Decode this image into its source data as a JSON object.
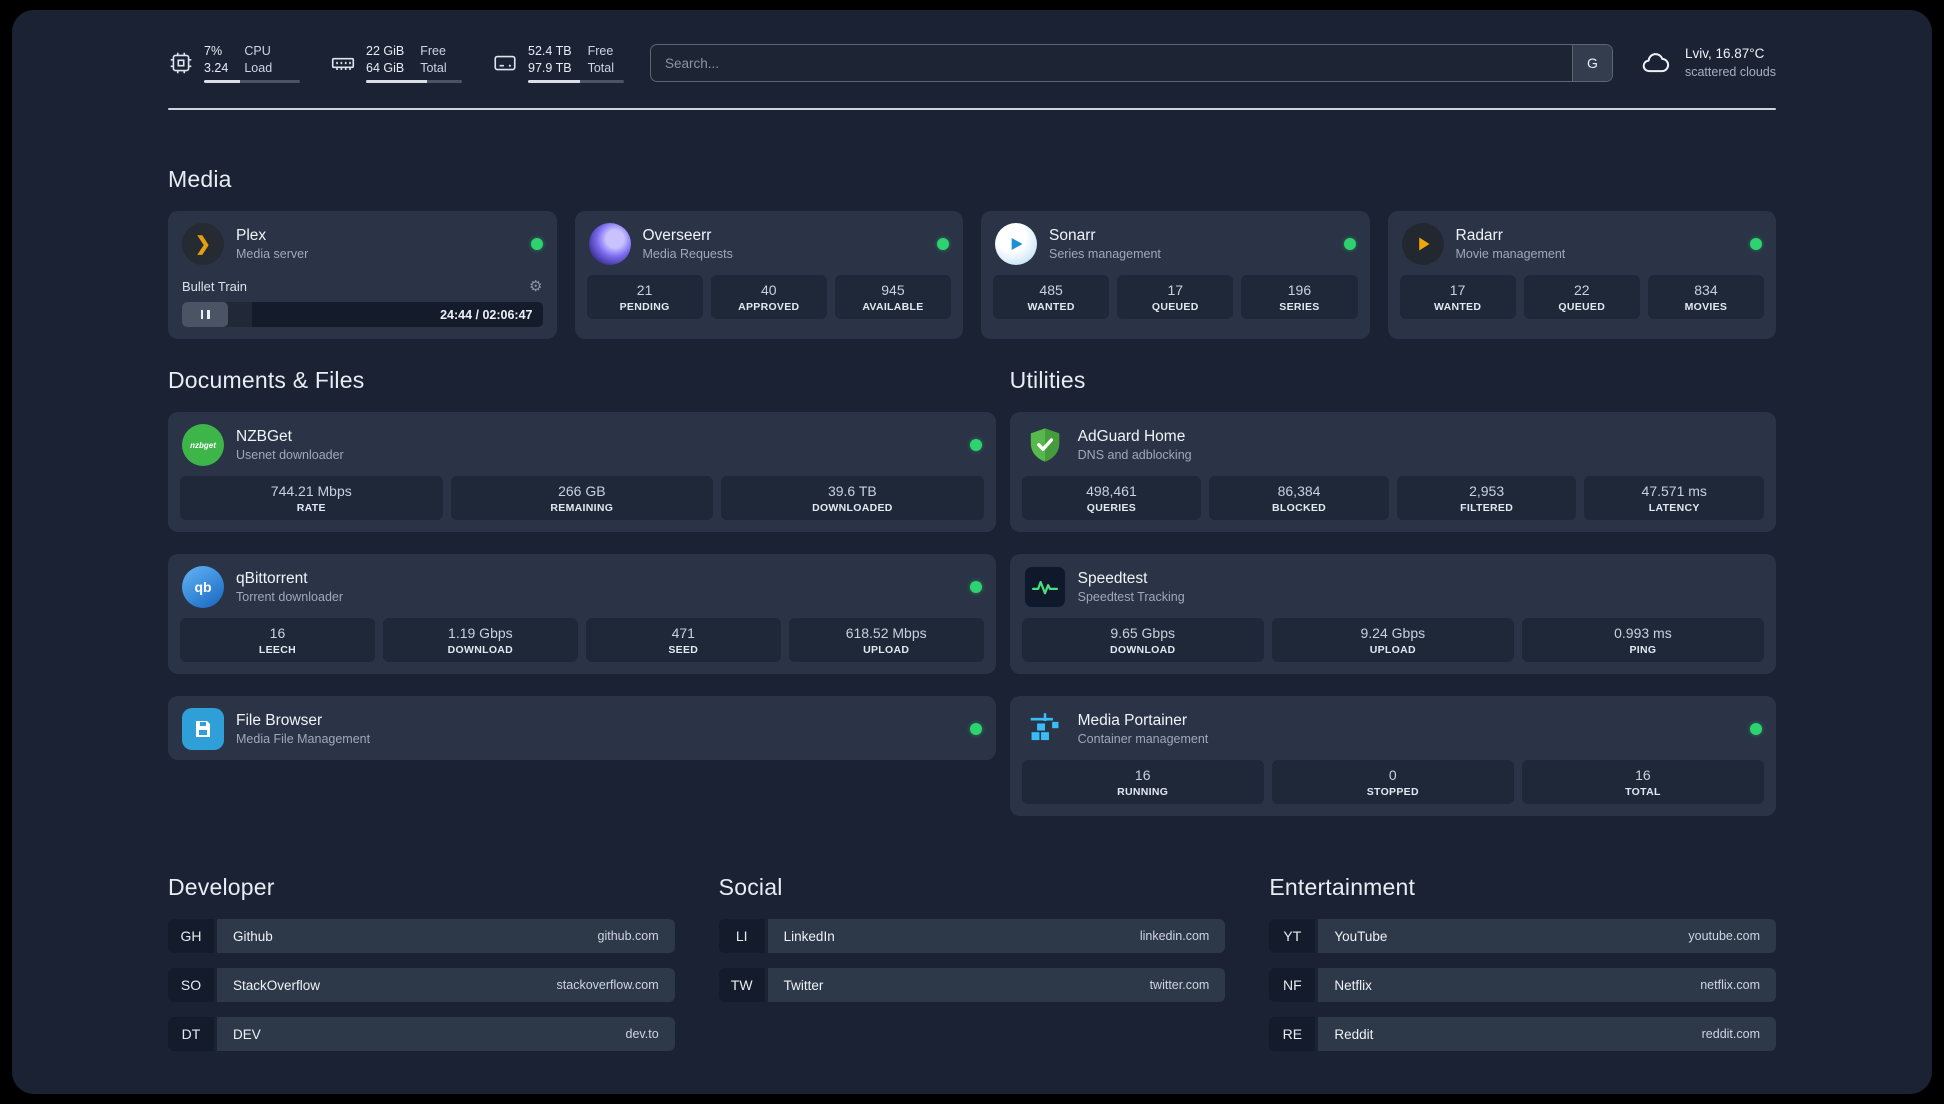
{
  "topbar": {
    "resources": [
      {
        "icon": "cpu-icon",
        "value_top": "7%",
        "value_bottom": "3.24",
        "label_top": "CPU",
        "label_bottom": "Load",
        "bar_percent": 38
      },
      {
        "icon": "memory-icon",
        "value_top": "22 GiB",
        "value_bottom": "64 GiB",
        "label_top": "Free",
        "label_bottom": "Total",
        "bar_percent": 64
      },
      {
        "icon": "disk-icon",
        "value_top": "52.4 TB",
        "value_bottom": "97.9 TB",
        "label_top": "Free",
        "label_bottom": "Total",
        "bar_percent": 54
      }
    ],
    "search": {
      "placeholder": "Search...",
      "engine_button": "G"
    },
    "weather": {
      "location": "Lviv, 16.87°C",
      "condition": "scattered clouds"
    }
  },
  "icons": {
    "gear": "⚙",
    "plex_chevron": "❯",
    "nzbget_logo": "nzbget",
    "qbittorrent_logo": "qb"
  },
  "sections": {
    "media": {
      "title": "Media",
      "plex": {
        "name": "Plex",
        "subtitle": "Media server",
        "status": "online",
        "now_playing": "Bullet Train",
        "time": "24:44 / 02:06:47",
        "progress_percent": 19.5
      },
      "overseerr": {
        "name": "Overseerr",
        "subtitle": "Media Requests",
        "status": "online",
        "stats": [
          {
            "value": "21",
            "label": "PENDING"
          },
          {
            "value": "40",
            "label": "APPROVED"
          },
          {
            "value": "945",
            "label": "AVAILABLE"
          }
        ]
      },
      "sonarr": {
        "name": "Sonarr",
        "subtitle": "Series management",
        "status": "online",
        "stats": [
          {
            "value": "485",
            "label": "WANTED"
          },
          {
            "value": "17",
            "label": "QUEUED"
          },
          {
            "value": "196",
            "label": "SERIES"
          }
        ]
      },
      "radarr": {
        "name": "Radarr",
        "subtitle": "Movie management",
        "status": "online",
        "stats": [
          {
            "value": "17",
            "label": "WANTED"
          },
          {
            "value": "22",
            "label": "QUEUED"
          },
          {
            "value": "834",
            "label": "MOVIES"
          }
        ]
      }
    },
    "documents": {
      "title": "Documents & Files",
      "nzbget": {
        "name": "NZBGet",
        "subtitle": "Usenet downloader",
        "status": "online",
        "stats": [
          {
            "value": "744.21 Mbps",
            "label": "RATE"
          },
          {
            "value": "266 GB",
            "label": "REMAINING"
          },
          {
            "value": "39.6 TB",
            "label": "DOWNLOADED"
          }
        ]
      },
      "qbittorrent": {
        "name": "qBittorrent",
        "subtitle": "Torrent downloader",
        "status": "online",
        "stats": [
          {
            "value": "16",
            "label": "LEECH"
          },
          {
            "value": "1.19 Gbps",
            "label": "DOWNLOAD"
          },
          {
            "value": "471",
            "label": "SEED"
          },
          {
            "value": "618.52 Mbps",
            "label": "UPLOAD"
          }
        ]
      },
      "filebrowser": {
        "name": "File Browser",
        "subtitle": "Media File Management",
        "status": "online"
      }
    },
    "utilities": {
      "title": "Utilities",
      "adguard": {
        "name": "AdGuard Home",
        "subtitle": "DNS and adblocking",
        "stats": [
          {
            "value": "498,461",
            "label": "QUERIES"
          },
          {
            "value": "86,384",
            "label": "BLOCKED"
          },
          {
            "value": "2,953",
            "label": "FILTERED"
          },
          {
            "value": "47.571 ms",
            "label": "LATENCY"
          }
        ]
      },
      "speedtest": {
        "name": "Speedtest",
        "subtitle": "Speedtest Tracking",
        "stats": [
          {
            "value": "9.65 Gbps",
            "label": "DOWNLOAD"
          },
          {
            "value": "9.24 Gbps",
            "label": "UPLOAD"
          },
          {
            "value": "0.993 ms",
            "label": "PING"
          }
        ]
      },
      "portainer": {
        "name": "Media Portainer",
        "subtitle": "Container management",
        "status": "online",
        "stats": [
          {
            "value": "16",
            "label": "RUNNING"
          },
          {
            "value": "0",
            "label": "STOPPED"
          },
          {
            "value": "16",
            "label": "TOTAL"
          }
        ]
      }
    }
  },
  "bookmarks": [
    {
      "title": "Developer",
      "items": [
        {
          "abbr": "GH",
          "name": "Github",
          "url": "github.com"
        },
        {
          "abbr": "SO",
          "name": "StackOverflow",
          "url": "stackoverflow.com"
        },
        {
          "abbr": "DT",
          "name": "DEV",
          "url": "dev.to"
        }
      ]
    },
    {
      "title": "Social",
      "items": [
        {
          "abbr": "LI",
          "name": "LinkedIn",
          "url": "linkedin.com"
        },
        {
          "abbr": "TW",
          "name": "Twitter",
          "url": "twitter.com"
        }
      ]
    },
    {
      "title": "Entertainment",
      "items": [
        {
          "abbr": "YT",
          "name": "YouTube",
          "url": "youtube.com"
        },
        {
          "abbr": "NF",
          "name": "Netflix",
          "url": "netflix.com"
        },
        {
          "abbr": "RE",
          "name": "Reddit",
          "url": "reddit.com"
        }
      ]
    }
  ],
  "colors": {
    "status_online": "#2dd36f",
    "plex_accent": "#e5a00d",
    "radarr_accent": "#f0a70a",
    "speedtest_accent": "#4ade80"
  }
}
